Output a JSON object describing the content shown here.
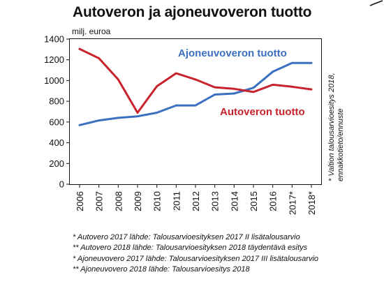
{
  "title": "Autoveron ja ajoneuvoveron tuotto",
  "chart_data": {
    "type": "line",
    "title": "Autoveron ja ajoneuvoveron tuotto",
    "ylabel": "milj. euroa",
    "xlabel": "",
    "ylim": [
      0,
      1400
    ],
    "yticks": [
      0,
      200,
      400,
      600,
      800,
      1000,
      1200,
      1400
    ],
    "categories": [
      "2006",
      "2007",
      "2008",
      "2009",
      "2010",
      "2011",
      "2012",
      "2013",
      "2014",
      "2015",
      "2016",
      "2017*",
      "2018*"
    ],
    "grid": false,
    "series": [
      {
        "name": "Ajoneuvoveron tuotto",
        "color": "#3b6fbf",
        "values": [
          570,
          615,
          640,
          655,
          690,
          760,
          760,
          865,
          875,
          930,
          1085,
          1170,
          1170
        ]
      },
      {
        "name": "Autoveron tuotto",
        "color": "#c8232c",
        "values": [
          1305,
          1215,
          1010,
          690,
          945,
          1070,
          1010,
          935,
          920,
          890,
          960,
          940,
          915
        ]
      }
    ],
    "side_note": "* Valtion talousarvioesitys 2018, ennakkotieto/ennuste"
  },
  "footnotes": [
    "* Autovero 2017 lähde: Talousarvioesityksen 2017 II lisätalousarvio",
    "** Autovero 2018 lähde: Talousarvioesityksen 2018 täydentävä esitys",
    "* Ajoneuvovero 2017 lähde: Talousarvioesityksen 2017 III lisätalousarvio",
    "** Ajoneuvovero 2018 lähde: Talousarvioesitys 2018"
  ]
}
